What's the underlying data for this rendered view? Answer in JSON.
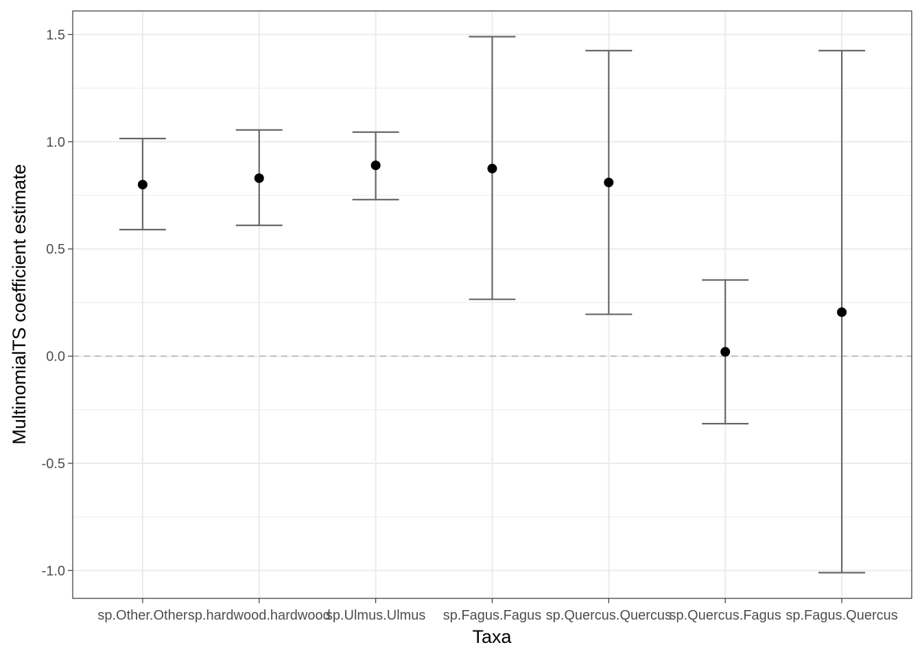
{
  "chart_data": {
    "type": "scatter",
    "title": "",
    "xlabel": "Taxa",
    "ylabel": "MultinomialTS coefficient estimate",
    "categories": [
      "sp.Other.Other",
      "sp.hardwood.hardwood",
      "sp.Ulmus.Ulmus",
      "sp.Fagus.Fagus",
      "sp.Quercus.Quercus",
      "sp.Quercus.Fagus",
      "sp.Fagus.Quercus"
    ],
    "estimate": [
      0.8,
      0.83,
      0.89,
      0.875,
      0.81,
      0.02,
      0.205
    ],
    "lower": [
      0.59,
      0.61,
      0.73,
      0.265,
      0.195,
      -0.315,
      -1.01
    ],
    "upper": [
      1.015,
      1.055,
      1.045,
      1.49,
      1.425,
      0.355,
      1.425
    ],
    "yticks": [
      -1.0,
      -0.5,
      0.0,
      0.5,
      1.0,
      1.5
    ],
    "ytick_labels": [
      "-1.0",
      "-0.5",
      "0.0",
      "0.5",
      "1.0",
      "1.5"
    ],
    "ylim": [
      -1.13,
      1.61
    ],
    "reference_line": 0.0,
    "grid": true,
    "legend": "none",
    "colors": {
      "point": "#000000",
      "errorbar": "#666666",
      "grid": "#ebebeb",
      "reference_line": "#bdbdbd",
      "panel_border": "#333333"
    }
  }
}
